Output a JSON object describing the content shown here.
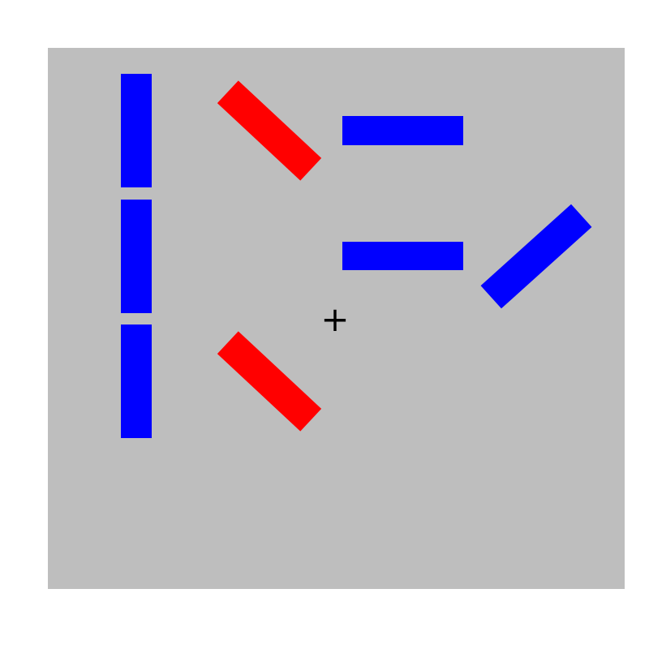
{
  "colors": {
    "page_background": "#ffffff",
    "panel": "#bebebe",
    "blue": "#0000ff",
    "red": "#ff0000",
    "fixation": "#000000"
  },
  "fixation": {
    "symbol": "+"
  },
  "bars": [
    {
      "id": "bar-left-top",
      "color": "blue",
      "orientation": "vertical"
    },
    {
      "id": "bar-left-middle",
      "color": "blue",
      "orientation": "vertical"
    },
    {
      "id": "bar-left-bottom",
      "color": "blue",
      "orientation": "vertical"
    },
    {
      "id": "bar-upper-diagonal",
      "color": "red",
      "orientation": "diagonal-down-right"
    },
    {
      "id": "bar-lower-diagonal",
      "color": "red",
      "orientation": "diagonal-down-right"
    },
    {
      "id": "bar-top-horizontal",
      "color": "blue",
      "orientation": "horizontal"
    },
    {
      "id": "bar-middle-horizontal",
      "color": "blue",
      "orientation": "horizontal"
    },
    {
      "id": "bar-right-diagonal",
      "color": "blue",
      "orientation": "diagonal-up-right"
    }
  ]
}
